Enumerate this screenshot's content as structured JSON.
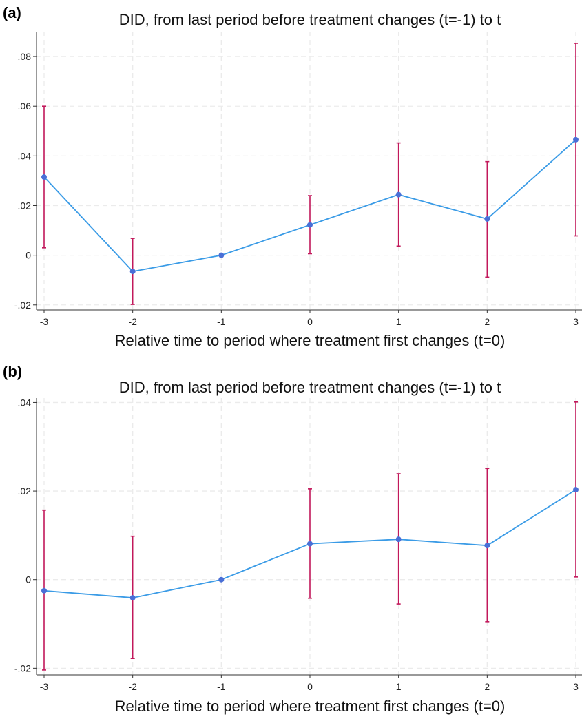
{
  "panels": [
    {
      "label": "(a)",
      "chart_data": {
        "type": "line",
        "title": "DID, from last period before treatment changes (t=-1) to t",
        "xlabel": "Relative time to period where treatment first changes (t=0)",
        "ylabel": "",
        "x": [
          -3,
          -2,
          -1,
          0,
          1,
          2,
          3
        ],
        "x_ticks": [
          "-3",
          "-2",
          "-1",
          "0",
          "1",
          "2",
          "3"
        ],
        "xlim": [
          -3,
          3
        ],
        "y_ticks": [
          -0.02,
          0,
          0.02,
          0.04,
          0.06,
          0.08
        ],
        "y_tick_labels": [
          "-.02",
          "0",
          ".02",
          ".04",
          ".06",
          ".08"
        ],
        "ylim": [
          -0.022,
          0.09
        ],
        "grid": true,
        "series": [
          {
            "values": [
              0.0315,
              -0.0065,
              0.0,
              0.0122,
              0.0244,
              0.0146,
              0.0465
            ],
            "ci_low": [
              0.003,
              -0.0198,
              0.0,
              0.0006,
              0.0037,
              -0.0088,
              0.0078
            ],
            "ci_high": [
              0.06,
              0.0068,
              0.0,
              0.024,
              0.0452,
              0.0377,
              0.0853
            ],
            "color": "#3a9be6",
            "marker_color": "#4a6fd6",
            "ci_color": "#c2185b"
          }
        ]
      }
    },
    {
      "label": "(b)",
      "chart_data": {
        "type": "line",
        "title": "DID, from last period before treatment changes (t=-1) to t",
        "xlabel": "Relative time to period where treatment first changes (t=0)",
        "ylabel": "",
        "x": [
          -3,
          -2,
          -1,
          0,
          1,
          2,
          3
        ],
        "x_ticks": [
          "-3",
          "-2",
          "-1",
          "0",
          "1",
          "2",
          "3"
        ],
        "xlim": [
          -3,
          3
        ],
        "y_ticks": [
          -0.02,
          0,
          0.02,
          0.04
        ],
        "y_tick_labels": [
          "-.02",
          "0",
          ".02",
          ".04"
        ],
        "ylim": [
          -0.0215,
          0.041
        ],
        "grid": true,
        "series": [
          {
            "values": [
              -0.0025,
              -0.0041,
              0.0,
              0.0081,
              0.0091,
              0.0077,
              0.0203
            ],
            "ci_low": [
              -0.0204,
              -0.0178,
              0.0,
              -0.0042,
              -0.0055,
              -0.0095,
              0.0006
            ],
            "ci_high": [
              0.0157,
              0.0098,
              0.0,
              0.0205,
              0.0239,
              0.0251,
              0.0401
            ],
            "color": "#3a9be6",
            "marker_color": "#4a6fd6",
            "ci_color": "#c2185b"
          }
        ]
      }
    }
  ]
}
